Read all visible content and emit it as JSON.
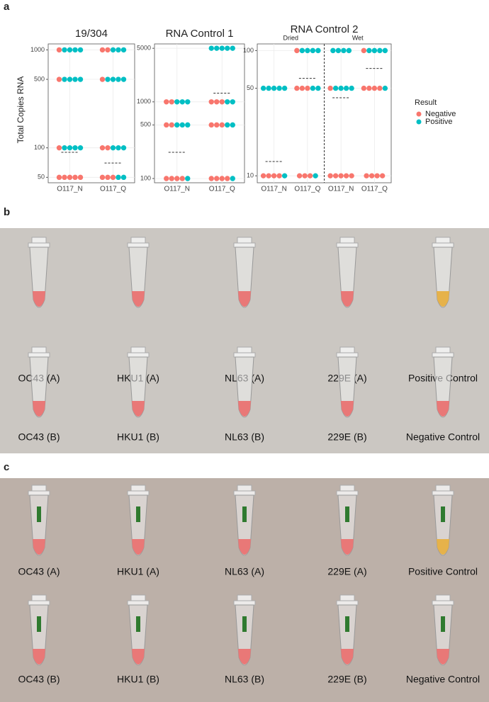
{
  "panels": [
    "a",
    "b",
    "c"
  ],
  "y_axis_label": "Total Copies RNA",
  "legend": {
    "title": "Result",
    "series": [
      {
        "name": "Negative",
        "color": "#f8766d"
      },
      {
        "name": "Positive",
        "color": "#00bfc4"
      }
    ]
  },
  "chart_data": [
    {
      "type": "dot",
      "title": "19/304",
      "log": true,
      "ylim": [
        44,
        1150
      ],
      "yticks": [
        50,
        100,
        500,
        1000
      ],
      "categories": [
        {
          "label": "O117_N",
          "negative": [
            1000,
            500,
            100,
            50,
            50,
            50,
            50,
            50
          ],
          "positive": [
            1000,
            1000,
            1000,
            1000,
            500,
            500,
            500,
            500,
            100,
            100,
            100,
            100
          ],
          "median": 90
        },
        {
          "label": "O117_Q",
          "negative": [
            1000,
            1000,
            500,
            100,
            100,
            50,
            50,
            50
          ],
          "positive": [
            1000,
            1000,
            1000,
            500,
            500,
            500,
            500,
            100,
            100,
            100,
            50,
            50
          ],
          "median": 70
        }
      ]
    },
    {
      "type": "dot",
      "title": "RNA Control 1",
      "log": true,
      "ylim": [
        88,
        5700
      ],
      "yticks": [
        100,
        500,
        1000,
        5000
      ],
      "categories": [
        {
          "label": "O117_N",
          "negative": [
            1000,
            1000,
            500,
            500,
            100,
            100,
            100,
            100
          ],
          "positive": [
            1000,
            1000,
            1000,
            500,
            500,
            500,
            100
          ],
          "median": 220
        },
        {
          "label": "O117_Q",
          "negative": [
            1000,
            1000,
            1000,
            500,
            500,
            500,
            100,
            100,
            100,
            100
          ],
          "positive": [
            5000,
            5000,
            5000,
            5000,
            5000,
            1000,
            1000,
            500,
            500,
            100
          ],
          "median": 1300
        }
      ]
    },
    {
      "type": "dot",
      "title": "RNA Control 2",
      "log": true,
      "ylim": [
        8.8,
        113
      ],
      "yticks": [
        10,
        50,
        100
      ],
      "groups": [
        "Dried",
        "Wet"
      ],
      "categories": [
        {
          "label": "O117_N",
          "negative": [
            10,
            10,
            10,
            10
          ],
          "positive": [
            50,
            50,
            50,
            50,
            50,
            10
          ],
          "median": 13
        },
        {
          "label": "O117_Q",
          "negative": [
            100,
            50,
            50,
            50,
            10,
            10,
            10
          ],
          "positive": [
            100,
            100,
            100,
            100,
            50,
            50,
            10
          ],
          "median": 60
        },
        {
          "label": "O117_N",
          "negative": [
            50,
            10,
            10,
            10,
            10,
            10
          ],
          "positive": [
            100,
            100,
            100,
            100,
            50,
            50,
            50,
            50
          ],
          "median": 42
        },
        {
          "label": "O117_Q",
          "negative": [
            100,
            50,
            50,
            50,
            50,
            10,
            10,
            10,
            10
          ],
          "positive": [
            100,
            100,
            100,
            100,
            50
          ],
          "median": 72
        }
      ]
    }
  ],
  "photo_b": {
    "labels": [
      [
        "OC43 (A)",
        "HKU1 (A)",
        "NL63 (A)",
        "229E (A)",
        "Positive Control"
      ],
      [
        "OC43 (B)",
        "HKU1 (B)",
        "NL63 (B)",
        "229E (B)",
        "Negative Control"
      ]
    ]
  },
  "photo_c": {
    "labels": [
      [
        "OC43 (A)",
        "HKU1 (A)",
        "NL63 (A)",
        "229E (A)",
        "Positive Control"
      ],
      [
        "OC43 (B)",
        "HKU1 (B)",
        "NL63 (B)",
        "229E (B)",
        "Negative Control"
      ]
    ]
  }
}
